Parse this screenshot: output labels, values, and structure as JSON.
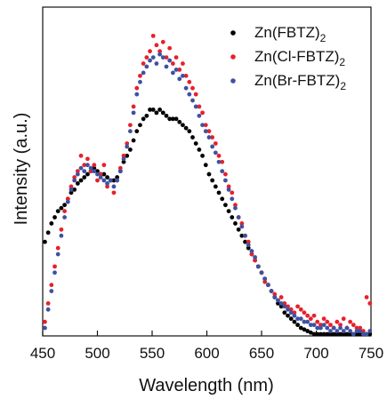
{
  "chart_data": {
    "type": "scatter",
    "xlabel": "Wavelength (nm)",
    "ylabel": "Intensity (a.u.)",
    "xlim": [
      450,
      750
    ],
    "ylim": [
      0,
      1.0
    ],
    "xticks": [
      "450",
      "500",
      "550",
      "600",
      "650",
      "700",
      "750"
    ],
    "grid": false,
    "legend_position": "top-right",
    "series": [
      {
        "name_main": "Zn(FBTZ)",
        "name_sub": "2",
        "color": "#000000",
        "x": [
          452,
          455,
          458,
          461,
          464,
          467,
          470,
          473,
          476,
          479,
          482,
          485,
          488,
          491,
          494,
          497,
          500,
          503,
          506,
          509,
          512,
          515,
          518,
          521,
          524,
          527,
          530,
          533,
          536,
          539,
          542,
          545,
          548,
          551,
          554,
          557,
          560,
          563,
          566,
          569,
          572,
          575,
          578,
          581,
          584,
          587,
          590,
          593,
          596,
          599,
          602,
          605,
          608,
          611,
          614,
          617,
          620,
          623,
          626,
          629,
          632,
          635,
          638,
          641,
          644,
          647,
          650,
          653,
          656,
          659,
          662,
          665,
          668,
          671,
          674,
          677,
          680,
          683,
          686,
          689,
          692,
          695,
          698,
          701,
          704,
          707,
          710,
          713,
          716,
          719,
          722,
          725,
          728,
          731,
          734,
          737,
          740,
          743,
          746,
          749
        ],
        "y": [
          0.3,
          0.33,
          0.36,
          0.38,
          0.4,
          0.41,
          0.42,
          0.44,
          0.46,
          0.47,
          0.49,
          0.5,
          0.51,
          0.52,
          0.53,
          0.54,
          0.53,
          0.52,
          0.52,
          0.51,
          0.5,
          0.5,
          0.51,
          0.53,
          0.56,
          0.58,
          0.6,
          0.63,
          0.66,
          0.68,
          0.7,
          0.71,
          0.73,
          0.73,
          0.72,
          0.73,
          0.72,
          0.71,
          0.7,
          0.7,
          0.7,
          0.69,
          0.68,
          0.67,
          0.66,
          0.64,
          0.62,
          0.6,
          0.58,
          0.55,
          0.52,
          0.5,
          0.48,
          0.46,
          0.44,
          0.42,
          0.4,
          0.38,
          0.36,
          0.34,
          0.32,
          0.3,
          0.28,
          0.26,
          0.24,
          0.22,
          0.2,
          0.18,
          0.16,
          0.14,
          0.12,
          0.1,
          0.09,
          0.07,
          0.06,
          0.05,
          0.04,
          0.03,
          0.02,
          0.015,
          0.01,
          0.005,
          0.0,
          0.0,
          0.0,
          0.0,
          0.0,
          0.0,
          0.0,
          0.0,
          0.0,
          0.0,
          0.0,
          0.0,
          0.0,
          0.0,
          0.0,
          0.0,
          0.0,
          0.0
        ]
      },
      {
        "name_main": "Zn(Cl-FBTZ)",
        "name_sub": "2",
        "color": "#e8202a",
        "x": [
          452,
          455,
          458,
          461,
          464,
          467,
          470,
          473,
          476,
          479,
          482,
          485,
          488,
          491,
          494,
          497,
          500,
          503,
          506,
          509,
          512,
          515,
          518,
          521,
          524,
          527,
          530,
          533,
          536,
          539,
          542,
          545,
          548,
          551,
          554,
          557,
          560,
          563,
          566,
          569,
          572,
          575,
          578,
          581,
          584,
          587,
          590,
          593,
          596,
          599,
          602,
          605,
          608,
          611,
          614,
          617,
          620,
          623,
          626,
          629,
          632,
          635,
          638,
          641,
          644,
          647,
          650,
          653,
          656,
          659,
          662,
          665,
          668,
          671,
          674,
          677,
          680,
          683,
          686,
          689,
          692,
          695,
          698,
          701,
          704,
          707,
          710,
          713,
          716,
          719,
          722,
          725,
          728,
          731,
          734,
          737,
          740,
          743,
          746,
          749
        ],
        "y": [
          0.04,
          0.1,
          0.16,
          0.22,
          0.28,
          0.34,
          0.4,
          0.44,
          0.48,
          0.51,
          0.53,
          0.58,
          0.55,
          0.57,
          0.53,
          0.55,
          0.5,
          0.52,
          0.55,
          0.48,
          0.5,
          0.46,
          0.5,
          0.54,
          0.58,
          0.62,
          0.68,
          0.74,
          0.8,
          0.84,
          0.88,
          0.9,
          0.92,
          0.97,
          0.94,
          0.92,
          0.95,
          0.9,
          0.93,
          0.88,
          0.9,
          0.86,
          0.88,
          0.84,
          0.82,
          0.8,
          0.78,
          0.74,
          0.72,
          0.68,
          0.66,
          0.64,
          0.62,
          0.58,
          0.56,
          0.52,
          0.48,
          0.46,
          0.42,
          0.38,
          0.36,
          0.32,
          0.3,
          0.26,
          0.24,
          0.22,
          0.2,
          0.17,
          0.16,
          0.14,
          0.13,
          0.11,
          0.12,
          0.1,
          0.09,
          0.08,
          0.07,
          0.09,
          0.08,
          0.07,
          0.06,
          0.05,
          0.06,
          0.04,
          0.03,
          0.05,
          0.04,
          0.03,
          0.02,
          0.04,
          0.03,
          0.05,
          0.02,
          0.04,
          0.03,
          0.02,
          0.02,
          0.01,
          0.12,
          0.1
        ]
      },
      {
        "name_main": "Zn(Br-FBTZ)",
        "name_sub": "2",
        "color": "#3e52a1",
        "x": [
          452,
          455,
          458,
          461,
          464,
          467,
          470,
          473,
          476,
          479,
          482,
          485,
          488,
          491,
          494,
          497,
          500,
          503,
          506,
          509,
          512,
          515,
          518,
          521,
          524,
          527,
          530,
          533,
          536,
          539,
          542,
          545,
          548,
          551,
          554,
          557,
          560,
          563,
          566,
          569,
          572,
          575,
          578,
          581,
          584,
          587,
          590,
          593,
          596,
          599,
          602,
          605,
          608,
          611,
          614,
          617,
          620,
          623,
          626,
          629,
          632,
          635,
          638,
          641,
          644,
          647,
          650,
          653,
          656,
          659,
          662,
          665,
          668,
          671,
          674,
          677,
          680,
          683,
          686,
          689,
          692,
          695,
          698,
          701,
          704,
          707,
          710,
          713,
          716,
          719,
          722,
          725,
          728,
          731,
          734,
          737,
          740,
          743,
          746,
          749
        ],
        "y": [
          0.02,
          0.08,
          0.14,
          0.2,
          0.26,
          0.32,
          0.38,
          0.43,
          0.47,
          0.5,
          0.52,
          0.54,
          0.53,
          0.55,
          0.54,
          0.53,
          0.52,
          0.51,
          0.5,
          0.49,
          0.5,
          0.48,
          0.5,
          0.53,
          0.57,
          0.61,
          0.66,
          0.72,
          0.78,
          0.82,
          0.85,
          0.87,
          0.89,
          0.9,
          0.88,
          0.91,
          0.9,
          0.87,
          0.89,
          0.85,
          0.86,
          0.83,
          0.84,
          0.8,
          0.78,
          0.76,
          0.74,
          0.71,
          0.68,
          0.66,
          0.64,
          0.61,
          0.59,
          0.56,
          0.53,
          0.5,
          0.47,
          0.44,
          0.41,
          0.38,
          0.35,
          0.32,
          0.29,
          0.27,
          0.25,
          0.22,
          0.2,
          0.18,
          0.16,
          0.14,
          0.12,
          0.11,
          0.1,
          0.09,
          0.08,
          0.07,
          0.06,
          0.05,
          0.05,
          0.04,
          0.04,
          0.03,
          0.03,
          0.02,
          0.02,
          0.03,
          0.02,
          0.01,
          0.02,
          0.01,
          0.02,
          0.01,
          0.02,
          0.01,
          0.0,
          0.01,
          0.01,
          0.0,
          0.0,
          0.01
        ]
      }
    ]
  }
}
